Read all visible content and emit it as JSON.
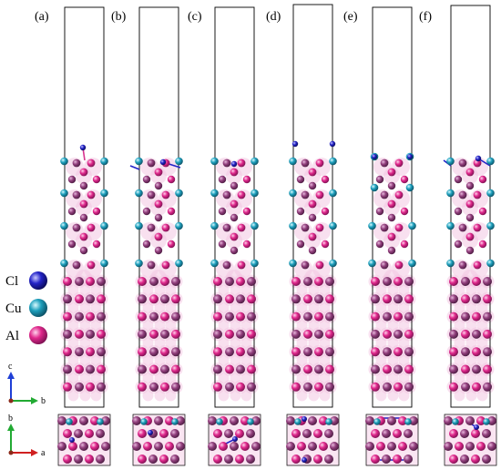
{
  "panels": [
    {
      "label": "(a)"
    },
    {
      "label": "(b)"
    },
    {
      "label": "(c)"
    },
    {
      "label": "(d)"
    },
    {
      "label": "(e)"
    },
    {
      "label": "(f)"
    }
  ],
  "legend": {
    "items": [
      {
        "label": "Cl",
        "color": "#2323c8",
        "icon": "cl-atom-icon"
      },
      {
        "label": "Cu",
        "color": "#1ea0bd",
        "icon": "cu-atom-icon"
      },
      {
        "label": "Al",
        "color": "#e0288c",
        "icon": "al-atom-icon"
      }
    ]
  },
  "axes_side": {
    "vertical": "c",
    "horizontal": "b"
  },
  "axes_top": {
    "vertical": "b",
    "horizontal": "a"
  },
  "colors": {
    "al": "#d8338f",
    "al_dark": "#8a3a78",
    "cu": "#1ea0bd",
    "cl": "#2323c8",
    "glow": "#f3c6e2",
    "cell": "#000000"
  }
}
